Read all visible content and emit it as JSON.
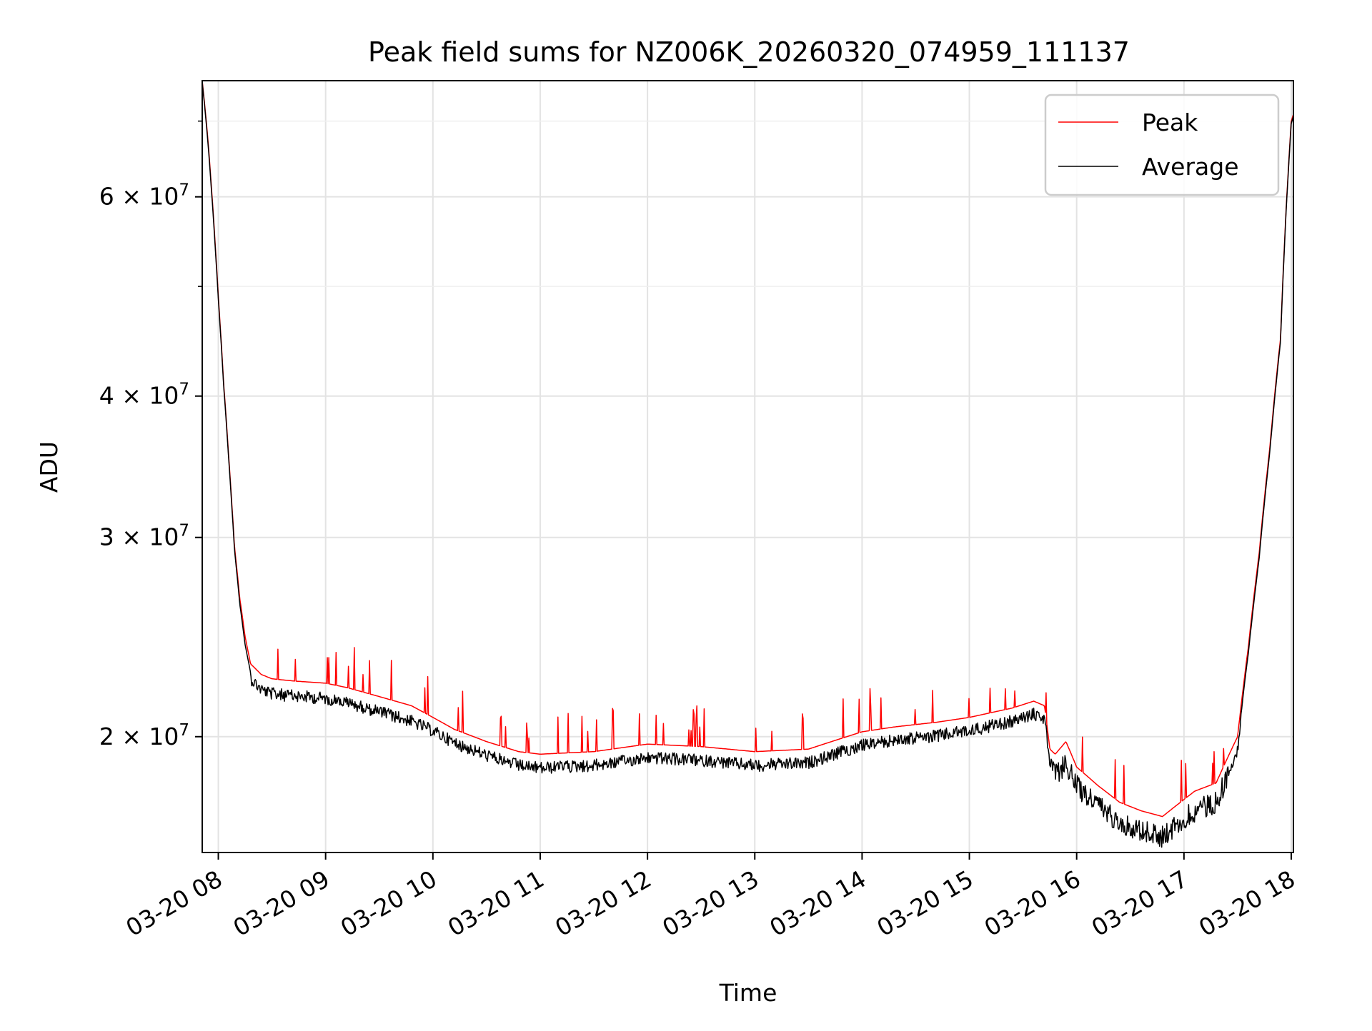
{
  "chart_data": {
    "type": "line",
    "title": "Peak field sums for NZ006K_20260320_074959_111137",
    "xlabel": "Time",
    "ylabel": "ADU",
    "y_scale": "log",
    "ylim": [
      15800000,
      76000000
    ],
    "xlim_hours": [
      7.85,
      18.02
    ],
    "grid": true,
    "legend_position": "top-right",
    "x_ticks": [
      {
        "hour": 8,
        "label": "03-20 08"
      },
      {
        "hour": 9,
        "label": "03-20 09"
      },
      {
        "hour": 10,
        "label": "03-20 10"
      },
      {
        "hour": 11,
        "label": "03-20 11"
      },
      {
        "hour": 12,
        "label": "03-20 12"
      },
      {
        "hour": 13,
        "label": "03-20 13"
      },
      {
        "hour": 14,
        "label": "03-20 14"
      },
      {
        "hour": 15,
        "label": "03-20 15"
      },
      {
        "hour": 16,
        "label": "03-20 16"
      },
      {
        "hour": 17,
        "label": "03-20 17"
      },
      {
        "hour": 18,
        "label": "03-20 18"
      }
    ],
    "y_ticks": [
      {
        "value": 20000000,
        "mantissa": "2",
        "exponent": "7"
      },
      {
        "value": 30000000,
        "mantissa": "3",
        "exponent": "7"
      },
      {
        "value": 40000000,
        "mantissa": "4",
        "exponent": "7"
      },
      {
        "value": 60000000,
        "mantissa": "6",
        "exponent": "7"
      }
    ],
    "y_minor_ticks": [
      50000000,
      70000000
    ],
    "series": [
      {
        "name": "Peak",
        "color": "#ff0000",
        "x": [
          7.85,
          7.9,
          8.0,
          8.05,
          8.1,
          8.15,
          8.2,
          8.25,
          8.3,
          8.4,
          8.5,
          8.7,
          9.0,
          9.2,
          9.5,
          9.8,
          10.0,
          10.2,
          10.5,
          10.8,
          11.0,
          11.5,
          12.0,
          12.5,
          13.0,
          13.5,
          14.0,
          14.3,
          14.7,
          15.0,
          15.4,
          15.6,
          15.7,
          15.75,
          15.8,
          15.9,
          16.0,
          16.2,
          16.4,
          16.6,
          16.8,
          16.9,
          17.0,
          17.1,
          17.3,
          17.5,
          17.6,
          17.7,
          17.8,
          17.9,
          17.95,
          18.0,
          18.02
        ],
        "y": [
          76000000,
          68000000,
          49000000,
          41000000,
          35000000,
          29500000,
          26500000,
          24500000,
          23200000,
          22700000,
          22500000,
          22400000,
          22300000,
          22100000,
          21700000,
          21300000,
          20800000,
          20300000,
          19800000,
          19400000,
          19300000,
          19400000,
          19700000,
          19600000,
          19400000,
          19500000,
          20200000,
          20400000,
          20600000,
          20800000,
          21200000,
          21500000,
          21300000,
          19500000,
          19300000,
          19800000,
          18800000,
          18100000,
          17500000,
          17200000,
          17000000,
          17300000,
          17600000,
          17900000,
          18200000,
          20000000,
          24000000,
          29000000,
          36000000,
          45000000,
          58000000,
          70000000,
          71000000
        ]
      },
      {
        "name": "Average",
        "color": "#000000",
        "x": [
          7.85,
          7.9,
          8.0,
          8.05,
          8.1,
          8.15,
          8.2,
          8.25,
          8.3,
          8.4,
          8.5,
          8.7,
          9.0,
          9.2,
          9.5,
          9.8,
          10.0,
          10.2,
          10.5,
          10.8,
          11.0,
          11.5,
          12.0,
          12.5,
          13.0,
          13.5,
          14.0,
          14.3,
          14.7,
          15.0,
          15.4,
          15.6,
          15.7,
          15.75,
          15.8,
          15.9,
          16.0,
          16.2,
          16.4,
          16.6,
          16.8,
          16.9,
          17.0,
          17.1,
          17.3,
          17.5,
          17.6,
          17.7,
          17.8,
          17.9,
          17.95,
          18.0,
          18.02
        ],
        "y": [
          75800000,
          67600000,
          48700000,
          40800000,
          34800000,
          29300000,
          26200000,
          24100000,
          22800000,
          22300000,
          22100000,
          22000000,
          21900000,
          21700000,
          21300000,
          20900000,
          20500000,
          20000000,
          19500000,
          19100000,
          19000000,
          19100000,
          19400000,
          19300000,
          19100000,
          19200000,
          19900000,
          20100000,
          20300000,
          20500000,
          20900000,
          21200000,
          21000000,
          19200000,
          18900000,
          19400000,
          18500000,
          17800000,
          17200000,
          16900000,
          16700000,
          17000000,
          17300000,
          17600000,
          17900000,
          19700000,
          23700000,
          28700000,
          35700000,
          44700000,
          57700000,
          69700000,
          70700000
        ]
      }
    ]
  }
}
